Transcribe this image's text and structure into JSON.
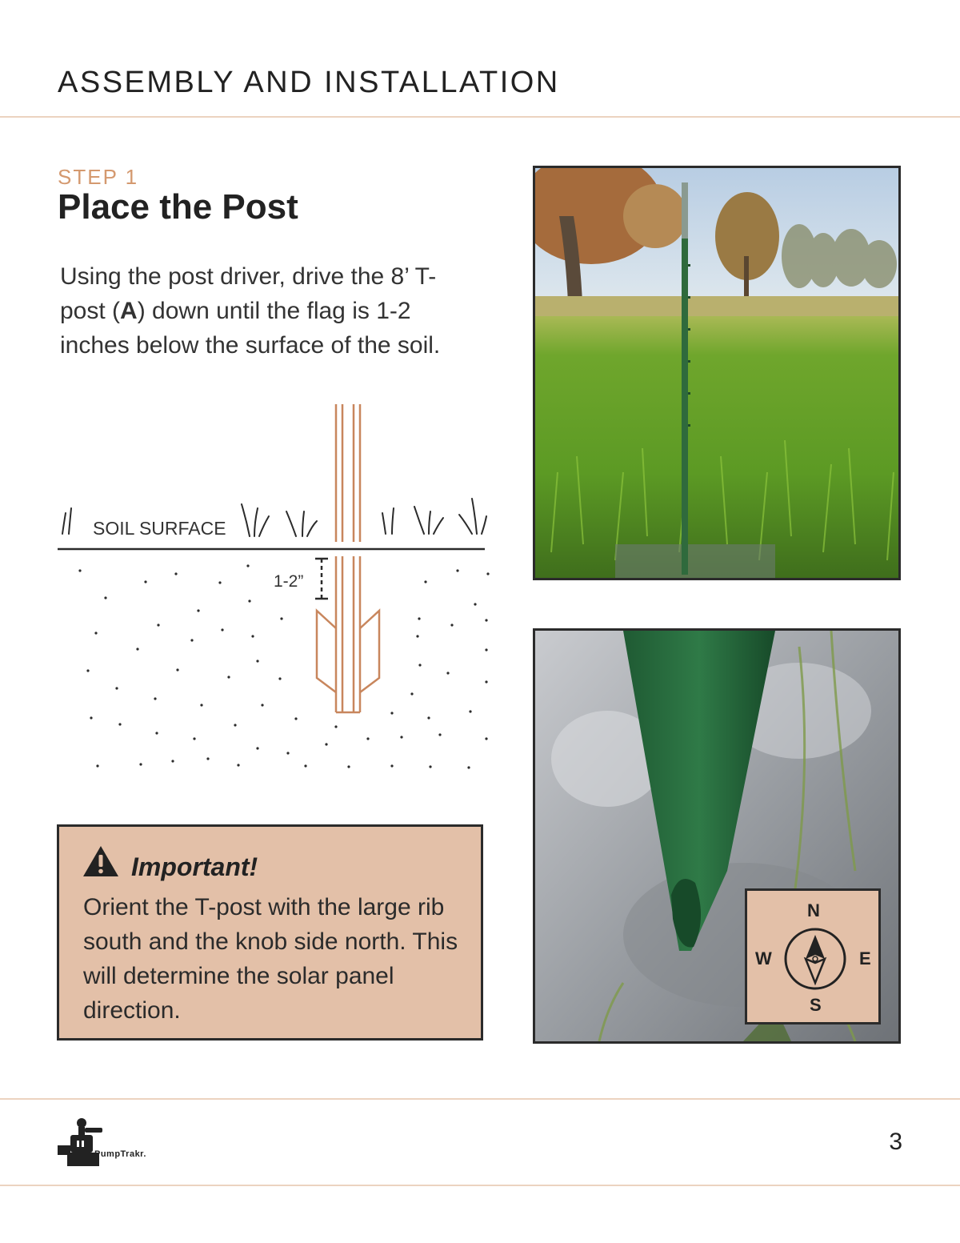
{
  "header": {
    "title": "ASSEMBLY AND INSTALLATION"
  },
  "step": {
    "label": "STEP 1",
    "title": "Place the Post",
    "body_part1": "Using the post driver, drive the 8’ T-post (",
    "body_bold": "A",
    "body_part2": ") down until the flag is 1-2 inches below the surface of the soil."
  },
  "diagram": {
    "soil_label": "SOIL SURFACE",
    "depth_label": "1-2”",
    "colors": {
      "post": "#c8865d",
      "line": "#2b2b2b"
    }
  },
  "callout": {
    "icon": "warning-icon",
    "heading": "Important!",
    "text": "Orient the T-post with the large rib south and the knob side north. This will determine the solar panel direction.",
    "background": "#e3c0a8"
  },
  "photos": {
    "field_photo": "t-post-in-rice-field",
    "closeup_photo": "t-post-in-water-closeup"
  },
  "compass": {
    "north": "N",
    "south": "S",
    "east": "E",
    "west": "W",
    "icon": "compass-icon"
  },
  "footer": {
    "brand": "PumpTrakr.",
    "page_number": "3"
  }
}
